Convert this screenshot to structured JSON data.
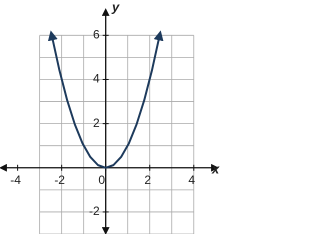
{
  "chart_data": {
    "type": "line",
    "x_label": "x",
    "y_label": "y",
    "x": [
      -2.45,
      -2.1,
      -1.75,
      -1.4,
      -1.05,
      -0.7,
      -0.35,
      0,
      0.35,
      0.7,
      1.05,
      1.4,
      1.75,
      2.1,
      2.45
    ],
    "series": [
      {
        "color": "#1d3a5c",
        "values": [
          6.0,
          4.41,
          3.06,
          1.96,
          1.1,
          0.49,
          0.12,
          0,
          0.12,
          0.49,
          1.1,
          1.96,
          3.06,
          4.41,
          6.0
        ]
      }
    ],
    "xlim": [
      -4.8,
      5.1
    ],
    "ylim": [
      -3,
      7.6
    ],
    "xticks": [
      -4,
      -2,
      0,
      2,
      4
    ],
    "yticks": [
      -2,
      2,
      4,
      6
    ],
    "grid": true
  }
}
